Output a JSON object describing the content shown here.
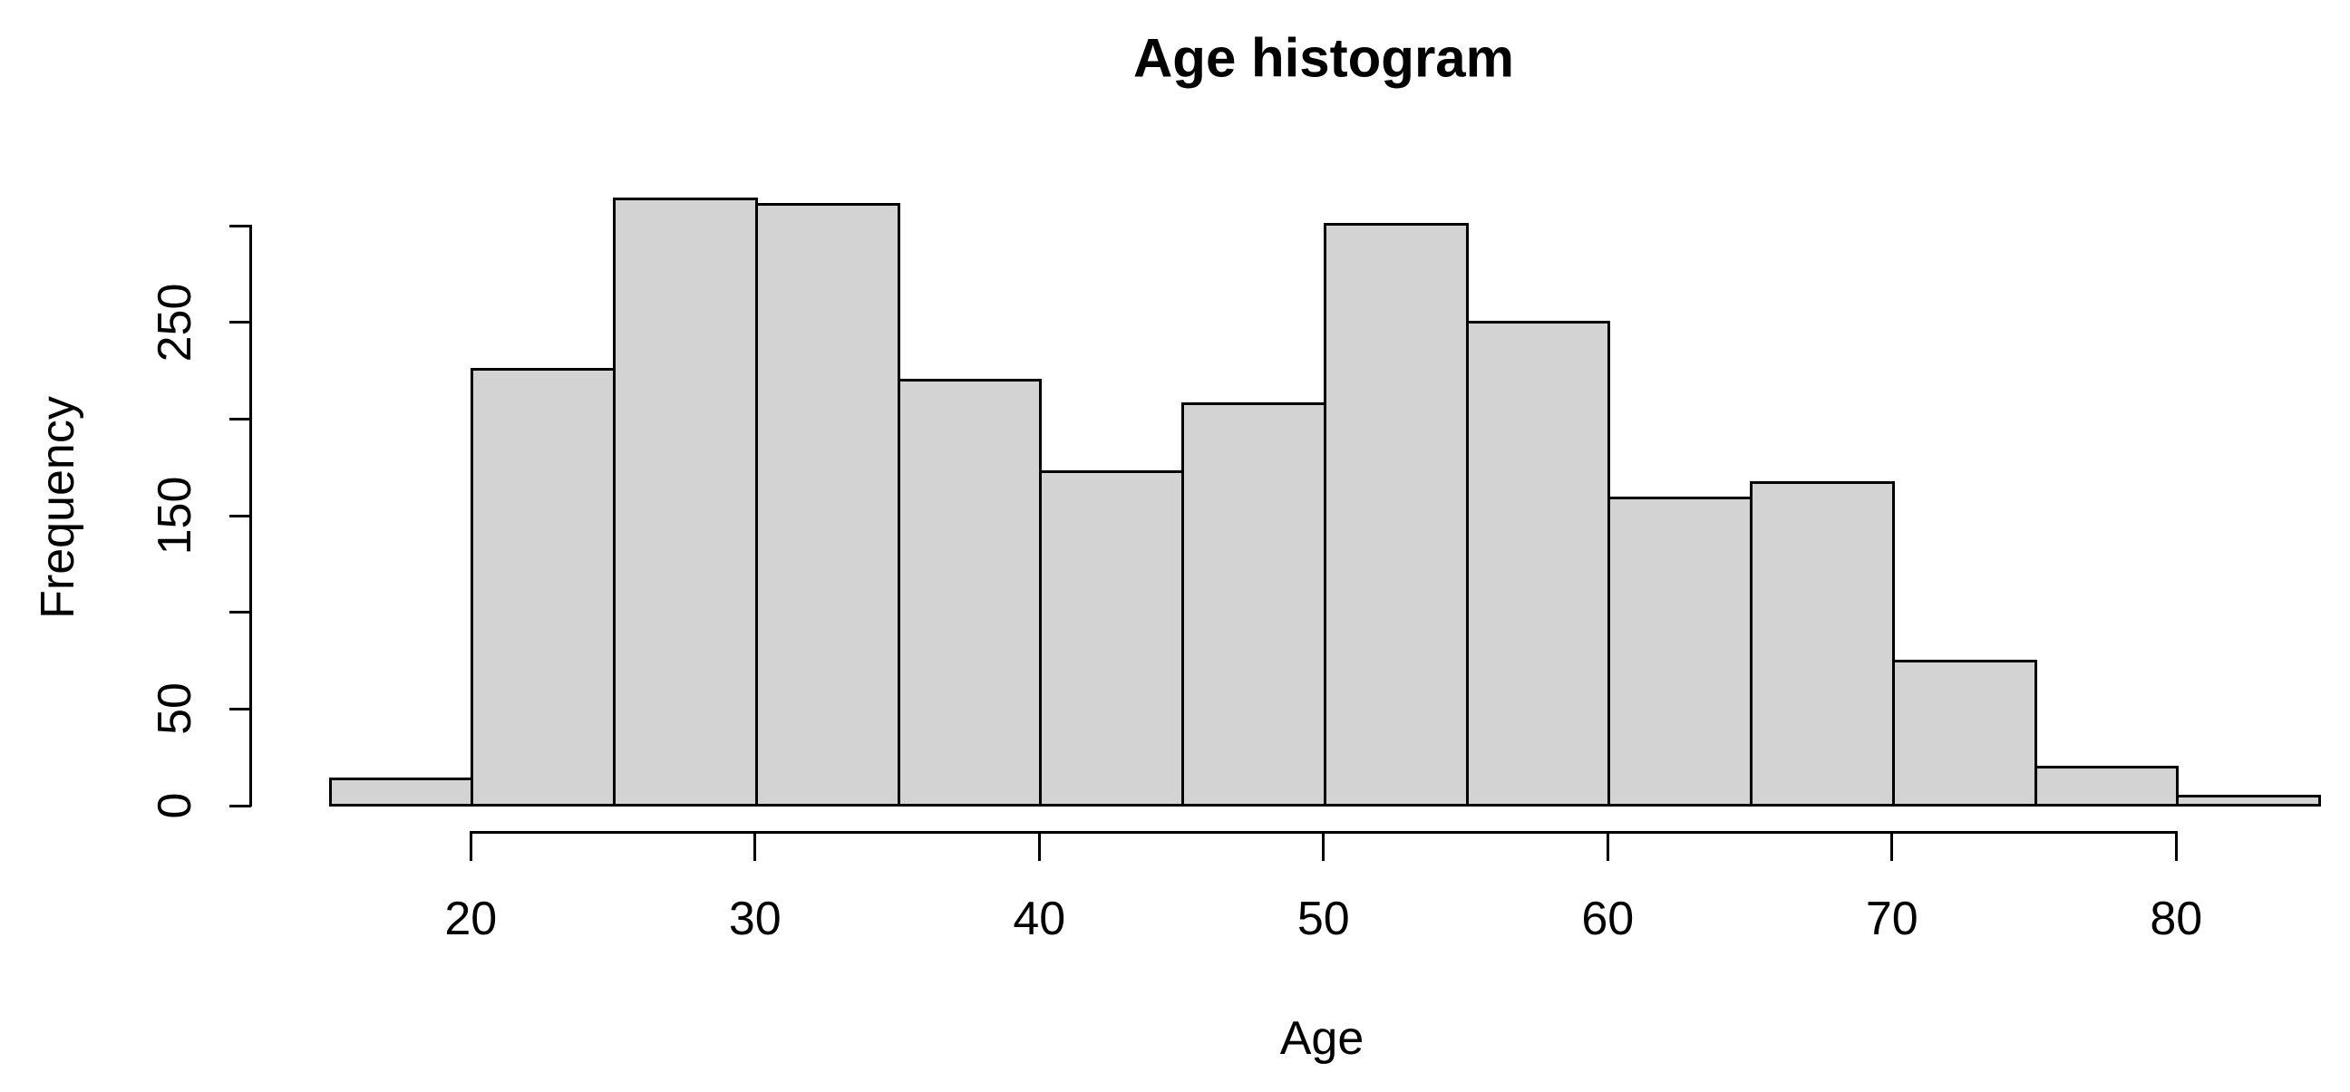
{
  "title": "Age histogram",
  "chart_data": {
    "type": "bar",
    "subtype": "histogram",
    "title": "Age histogram",
    "xlabel": "Age",
    "ylabel": "Frequency",
    "xlim": [
      15,
      85
    ],
    "ylim": [
      0,
      300
    ],
    "grid": false,
    "legend": false,
    "bin_width": 5,
    "bar_fill": "#d3d3d3",
    "bar_border": "#000000",
    "bins": [
      {
        "range": [
          15,
          20
        ],
        "frequency": 14
      },
      {
        "range": [
          20,
          25
        ],
        "frequency": 226
      },
      {
        "range": [
          25,
          30
        ],
        "frequency": 314
      },
      {
        "range": [
          30,
          35
        ],
        "frequency": 311
      },
      {
        "range": [
          35,
          40
        ],
        "frequency": 220
      },
      {
        "range": [
          40,
          45
        ],
        "frequency": 173
      },
      {
        "range": [
          45,
          50
        ],
        "frequency": 208
      },
      {
        "range": [
          50,
          55
        ],
        "frequency": 301
      },
      {
        "range": [
          55,
          60
        ],
        "frequency": 250
      },
      {
        "range": [
          60,
          65
        ],
        "frequency": 159
      },
      {
        "range": [
          65,
          70
        ],
        "frequency": 167
      },
      {
        "range": [
          70,
          75
        ],
        "frequency": 75
      },
      {
        "range": [
          75,
          80
        ],
        "frequency": 20
      },
      {
        "range": [
          80,
          85
        ],
        "frequency": 5
      }
    ],
    "x_ticks": [
      {
        "value": 20,
        "label": "20"
      },
      {
        "value": 30,
        "label": "30"
      },
      {
        "value": 40,
        "label": "40"
      },
      {
        "value": 50,
        "label": "50"
      },
      {
        "value": 60,
        "label": "60"
      },
      {
        "value": 70,
        "label": "70"
      },
      {
        "value": 80,
        "label": "80"
      }
    ],
    "y_ticks": [
      {
        "value": 0,
        "label": "0"
      },
      {
        "value": 50,
        "label": "50"
      },
      {
        "value": 100,
        "label": ""
      },
      {
        "value": 150,
        "label": "150"
      },
      {
        "value": 200,
        "label": ""
      },
      {
        "value": 250,
        "label": "250"
      },
      {
        "value": 300,
        "label": ""
      }
    ]
  }
}
